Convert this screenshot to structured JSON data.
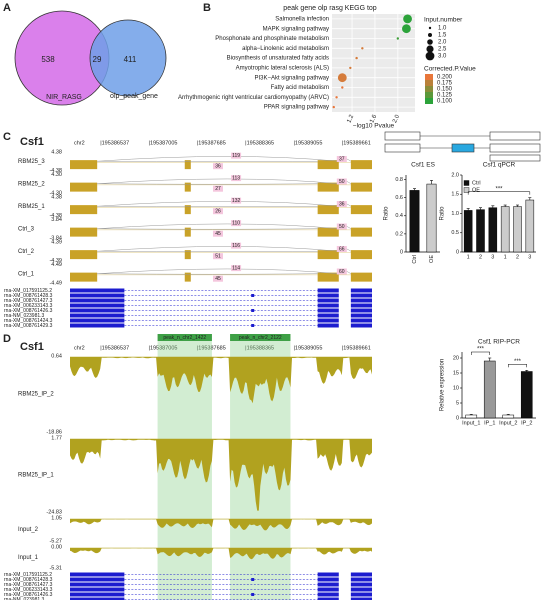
{
  "figure": {
    "panel_labels": [
      "A",
      "B",
      "C",
      "D"
    ]
  },
  "chart_data": [
    {
      "type": "venn",
      "sets": [
        {
          "name": "NIR_RASG",
          "color": "#d46ae8"
        },
        {
          "name": "olp_peak_gene",
          "color": "#6f9fe8"
        }
      ],
      "values": [
        538,
        29,
        411
      ]
    },
    {
      "type": "dot",
      "title": "peak gene olp rasg KEGG top",
      "categories": [
        "Salmonella infection",
        "MAPK signaling pathway",
        "Phosphonate and phosphinate metabolism",
        "alpha−Linolenic acid metabolism",
        "Biosynthesis of unsaturated fatty acids",
        "Amyotrophic lateral sclerosis (ALS)",
        "PI3K−Akt signaling pathway",
        "Fatty acid metabolism",
        "Arrhythmogenic right ventricular cardiomyopathy (ARVC)",
        "PPAR signaling pathway"
      ],
      "values": [
        2.17,
        2.15,
        2.0,
        1.38,
        1.28,
        1.17,
        1.03,
        1.03,
        0.93,
        0.88
      ],
      "sizes": [
        3,
        3,
        1,
        1,
        1,
        1,
        3,
        1,
        1,
        1
      ],
      "corrected_p": [
        0.1,
        0.1,
        0.11,
        0.19,
        0.19,
        0.19,
        0.19,
        0.2,
        0.2,
        0.2
      ],
      "xlabel": "−log10 Pvalue",
      "xlim": [
        0.85,
        2.3
      ],
      "xticks": [
        1.2,
        1.6,
        {
          "value": 2,
          "label": "2.0"
        }
      ],
      "size_legend_title": "Input.number",
      "size_legend": [
        {
          "value": 1,
          "label": "1.0"
        },
        1.5,
        {
          "value": 2,
          "label": "2.0"
        },
        2.5,
        {
          "value": 3,
          "label": "3.0"
        }
      ],
      "color_legend_title": "Corrected.P.Value",
      "color_legend": [
        {
          "value": 0.2,
          "label": "0.200"
        },
        0.175,
        {
          "value": 0.15,
          "label": "0.150"
        },
        0.125,
        {
          "value": 0.1,
          "label": "0.100"
        }
      ],
      "clim": [
        0.1,
        0.2
      ],
      "colors": [
        "#2ca33a",
        "#e8763a"
      ],
      "grid": true
    },
    {
      "type": "bar",
      "title": "Csf1 ES",
      "ylabel": "Ratio",
      "categories": [
        "Ctrl",
        "OE"
      ],
      "values": [
        0.68,
        0.75
      ],
      "errors": [
        0.02,
        0.04
      ],
      "colors": [
        "#111111",
        "#cccccc"
      ],
      "ylim": [
        0,
        0.85
      ],
      "yticks": [
        0,
        0.2,
        0.4,
        0.6,
        0.8
      ]
    },
    {
      "type": "bar",
      "title": "Csf1 qPCR",
      "ylabel": "Ratio",
      "categories": [
        "1",
        "2",
        "3"
      ],
      "series": [
        {
          "name": "Ctrl",
          "color": "#111111",
          "values": [
            1.08,
            1.1,
            1.15
          ],
          "errors": [
            0.05,
            0.05,
            0.05
          ]
        },
        {
          "name": "OE",
          "color": "#cccccc",
          "values": [
            1.18,
            1.18,
            1.35
          ],
          "errors": [
            0.04,
            0.04,
            0.06
          ]
        }
      ],
      "annotations": [
        "***"
      ],
      "ylim": [
        0,
        2
      ],
      "yticks": [
        0,
        0.5,
        {
          "value": 1,
          "label": "1.0"
        },
        1.5,
        {
          "value": 2,
          "label": "2.0"
        }
      ]
    },
    {
      "type": "bar",
      "title": "Csf1 RIP-PCR",
      "ylabel": "Relative expression",
      "categories": [
        "Input_1",
        "IP_1",
        "Input_2",
        "IP_2"
      ],
      "values": [
        1,
        19,
        1,
        15.5
      ],
      "errors": [
        0.2,
        1,
        0.2,
        0.4
      ],
      "colors": [
        "#ffffff",
        "#999999",
        "#ffffff",
        "#111111"
      ],
      "annotations": [
        "***",
        "***"
      ],
      "ylim": [
        0,
        22
      ],
      "yticks": [
        0,
        5,
        10,
        15,
        20
      ]
    }
  ],
  "browser_c": {
    "gene": "Csf1",
    "chrom": "chr2",
    "coords": [
      "|195386537",
      "|195387005",
      "|195387685",
      "|195388365",
      "|195389055",
      "|195389661"
    ],
    "tracks": [
      {
        "name": "RBM25_3",
        "top": "4.38",
        "bottom": "-4.38",
        "junctions": [
          36,
          119,
          37
        ]
      },
      {
        "name": "RBM25_2",
        "top": "4.30",
        "bottom": "-4.30",
        "junctions": [
          27,
          113,
          50
        ]
      },
      {
        "name": "RBM25_1",
        "top": "4.38",
        "bottom": "-4.38",
        "junctions": [
          26,
          132,
          36
        ]
      },
      {
        "name": "Ctrl_3",
        "top": "3.84",
        "bottom": "-3.84",
        "junctions": [
          45,
          110,
          50
        ]
      },
      {
        "name": "Ctrl_2",
        "top": "4.39",
        "bottom": "-4.39",
        "junctions": [
          51,
          116,
          66
        ]
      },
      {
        "name": "Ctrl_1",
        "top": "4.49",
        "bottom": "-4.49",
        "junctions": [
          45,
          114,
          60
        ]
      }
    ],
    "transcripts": [
      "rna-XM_017591125.2",
      "rna-XM_008761428.3",
      "rna-XM_008761427.3",
      "rna-XM_006233143.3",
      "rna-XM_008761426.3",
      "rna-NM_023981.3",
      "rna-XM_008761424.3",
      "rna-XM_008761429.3"
    ]
  },
  "browser_d": {
    "gene": "Csf1",
    "chrom": "chr2",
    "coords": [
      "|195386537",
      "|195387005",
      "|195387685",
      "|195388365",
      "|195389055",
      "|195389661"
    ],
    "peaks": [
      "peak_n_chr2_1422",
      "peak_n_chr2_2122"
    ],
    "tracks": [
      {
        "name": "RBM25_IP_2",
        "top": "0.64",
        "bottom": "-18.86"
      },
      {
        "name": "RBM25_IP_1",
        "top": "1.77",
        "bottom": "-24.83"
      },
      {
        "name": "Input_2",
        "top": "1.05",
        "bottom": "-5.27"
      },
      {
        "name": "Input_1",
        "top": "0.00",
        "bottom": "-5.31"
      }
    ],
    "transcripts": [
      "rna-XM_017591125.2",
      "rna-XM_008761428.3",
      "rna-XM_008761427.3",
      "rna-XM_006233143.3",
      "rna-XM_008761426.3",
      "rna-NM_023981.3",
      "rna-XM_008761424.3",
      "rna-XM_008761429.3"
    ]
  }
}
